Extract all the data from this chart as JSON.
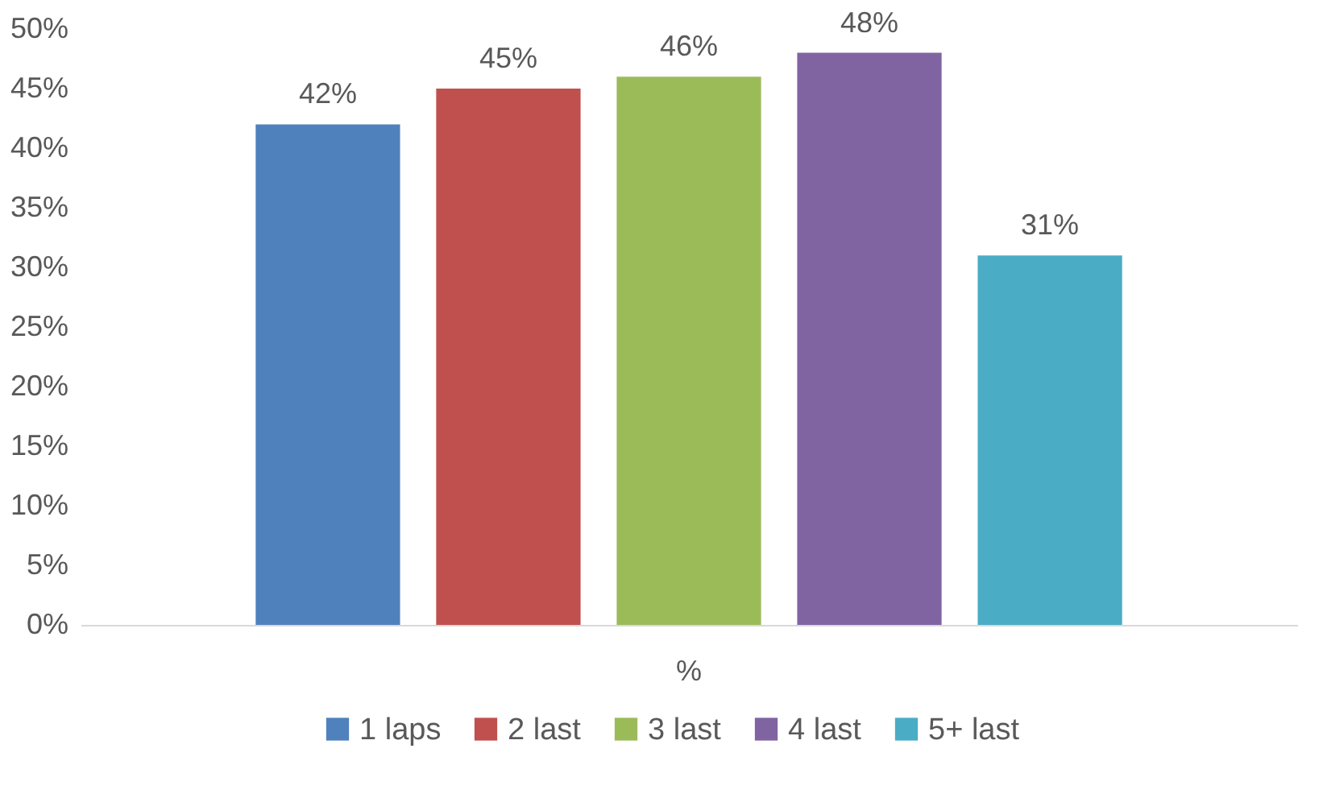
{
  "chart_data": {
    "type": "bar",
    "categories": [
      "%"
    ],
    "series": [
      {
        "name": "1 laps",
        "color": "#4f81bd",
        "values": [
          42
        ],
        "value_labels": [
          "42%"
        ]
      },
      {
        "name": "2 last",
        "color": "#c0504d",
        "values": [
          45
        ],
        "value_labels": [
          "45%"
        ]
      },
      {
        "name": "3 last",
        "color": "#9bbb59",
        "values": [
          46
        ],
        "value_labels": [
          "46%"
        ]
      },
      {
        "name": "4 last",
        "color": "#8064a2",
        "values": [
          48
        ],
        "value_labels": [
          "48%"
        ]
      },
      {
        "name": "5+ last",
        "color": "#4bacc6",
        "values": [
          31
        ],
        "value_labels": [
          "31%"
        ]
      }
    ],
    "ylim": [
      0,
      50
    ],
    "yticks": [
      {
        "value": 0,
        "label": "0%"
      },
      {
        "value": 5,
        "label": "5%"
      },
      {
        "value": 10,
        "label": "10%"
      },
      {
        "value": 15,
        "label": "15%"
      },
      {
        "value": 20,
        "label": "20%"
      },
      {
        "value": 25,
        "label": "25%"
      },
      {
        "value": 30,
        "label": "30%"
      },
      {
        "value": 35,
        "label": "35%"
      },
      {
        "value": 40,
        "label": "40%"
      },
      {
        "value": 45,
        "label": "45%"
      },
      {
        "value": 50,
        "label": "50%"
      }
    ],
    "legend": "bottom"
  }
}
